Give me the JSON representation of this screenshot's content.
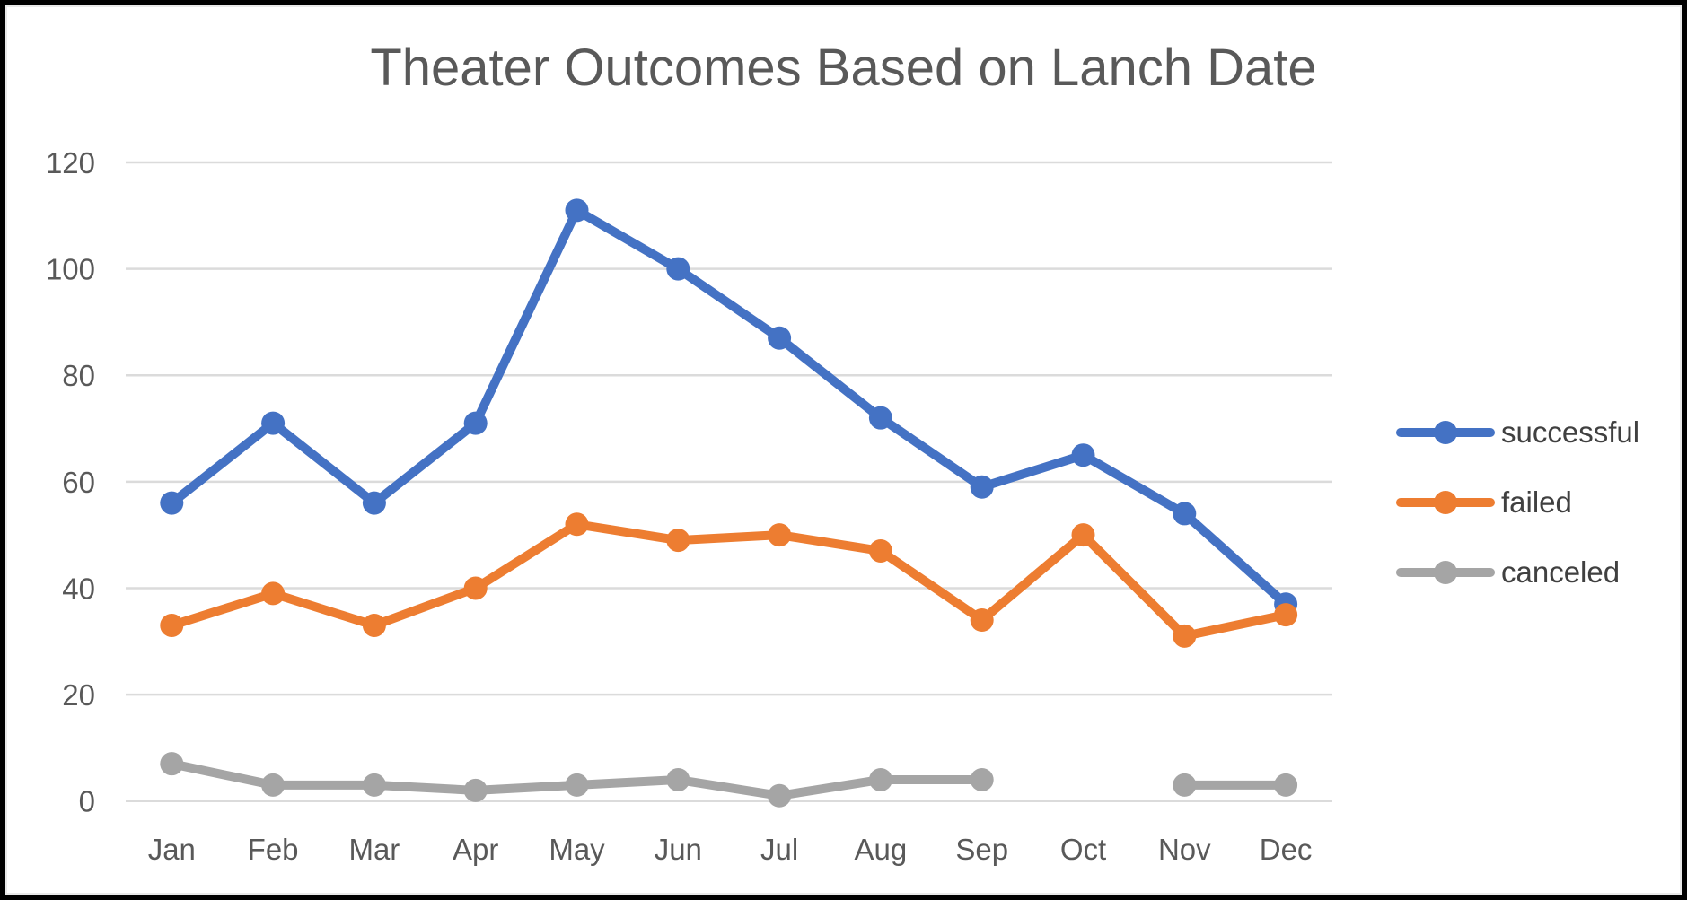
{
  "chart_data": {
    "type": "line",
    "title": "Theater Outcomes Based on Lanch Date",
    "categories": [
      "Jan",
      "Feb",
      "Mar",
      "Apr",
      "May",
      "Jun",
      "Jul",
      "Aug",
      "Sep",
      "Oct",
      "Nov",
      "Dec"
    ],
    "series": [
      {
        "name": "successful",
        "color": "#4472C4",
        "values": [
          56,
          71,
          56,
          71,
          111,
          100,
          87,
          72,
          59,
          65,
          54,
          37
        ]
      },
      {
        "name": "failed",
        "color": "#ED7D31",
        "values": [
          33,
          39,
          33,
          40,
          52,
          49,
          50,
          47,
          34,
          50,
          31,
          35
        ]
      },
      {
        "name": "canceled",
        "color": "#A5A5A5",
        "values": [
          7,
          3,
          3,
          2,
          3,
          4,
          1,
          4,
          4,
          null,
          3,
          3
        ]
      }
    ],
    "y_ticks": [
      0,
      20,
      40,
      60,
      80,
      100,
      120
    ],
    "ylim": [
      0,
      120
    ],
    "xlabel": "",
    "ylabel": "",
    "grid": true,
    "legend_position": "right",
    "marker": "circle"
  },
  "colors": {
    "gridline": "#DBDBDB",
    "axis_text": "#595959",
    "title_text": "#595959",
    "legend_text": "#404040",
    "background": "#FFFFFF",
    "frame_border": "#000000"
  }
}
